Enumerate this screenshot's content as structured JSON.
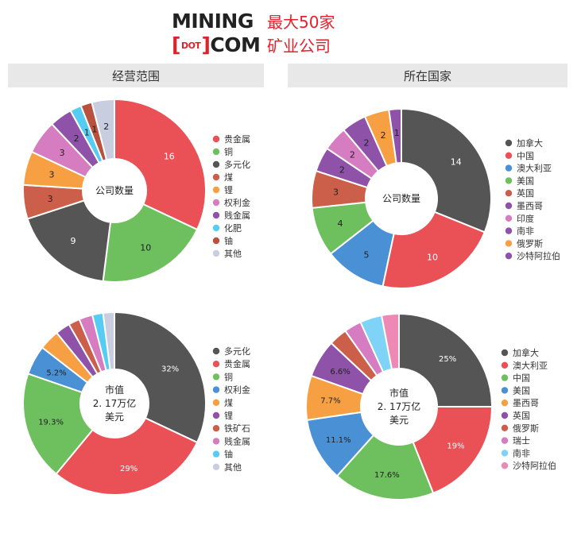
{
  "header": {
    "logo_line1": "MINING",
    "logo_bracket_open": "[",
    "logo_dot": "DOT",
    "logo_bracket_close": "]",
    "logo_line2_word": "COM",
    "tagline_line1": "最大50家",
    "tagline_line2": "矿业公司"
  },
  "sections": {
    "left_title": "经营范围",
    "right_title": "所在国家"
  },
  "chart_data": [
    {
      "id": "scope-count",
      "type": "pie",
      "title": "经营范围",
      "center_label": [
        "公司数量"
      ],
      "categories": [
        "贵金属",
        "铜",
        "多元化",
        "煤",
        "锂",
        "权利金",
        "贱金属",
        "化肥",
        "铀",
        "其他"
      ],
      "values": [
        16,
        10,
        9,
        3,
        3,
        3,
        2,
        1,
        1,
        2
      ],
      "labels": [
        "16",
        "10",
        "9",
        "3",
        "3",
        "3",
        "2",
        "1",
        "1",
        "2"
      ],
      "colors": [
        "#ea5157",
        "#6ebf5e",
        "#555555",
        "#cc5f4a",
        "#f6a043",
        "#d67cc0",
        "#8e52a8",
        "#56ccf2",
        "#b8513d",
        "#c8cde0"
      ]
    },
    {
      "id": "country-count",
      "type": "pie",
      "title": "所在国家",
      "center_label": [
        "公司数量"
      ],
      "categories": [
        "加拿大",
        "中国",
        "澳大利亚",
        "美国",
        "英国",
        "墨西哥",
        "印度",
        "南非",
        "俄罗斯",
        "沙特阿拉伯"
      ],
      "values": [
        14,
        10,
        5,
        4,
        3,
        2,
        2,
        2,
        2,
        1
      ],
      "labels": [
        "14",
        "10",
        "5",
        "4",
        "3",
        "2",
        "2",
        "2",
        "2",
        "1"
      ],
      "colors": [
        "#555555",
        "#ea5157",
        "#4a90d4",
        "#6ebf5e",
        "#cc5f4a",
        "#8e52a8",
        "#d67cc0",
        "#8e52a8",
        "#f6a043",
        "#8e52a8"
      ]
    },
    {
      "id": "scope-marketcap",
      "type": "pie",
      "title": "",
      "center_label": [
        "市值",
        "2. 17万亿",
        "美元"
      ],
      "categories": [
        "多元化",
        "贵金属",
        "铜",
        "权利金",
        "煤",
        "锂",
        "铁矿石",
        "贱金属",
        "铀",
        "其他"
      ],
      "values": [
        32,
        29,
        19.3,
        5.2,
        3.6,
        2.6,
        2.0,
        2.4,
        1.9,
        2.0
      ],
      "labels": [
        "32%",
        "29%",
        "19.3%",
        "5.2%",
        "",
        "",
        "",
        "",
        "",
        ""
      ],
      "colors": [
        "#555555",
        "#ea5157",
        "#6ebf5e",
        "#4a90d4",
        "#f6a043",
        "#8e52a8",
        "#cc5f4a",
        "#d67cc0",
        "#56ccf2",
        "#c8cde0"
      ]
    },
    {
      "id": "country-marketcap",
      "type": "pie",
      "title": "",
      "center_label": [
        "市值",
        "2. 17万亿",
        "美元"
      ],
      "categories": [
        "加拿大",
        "澳大利亚",
        "中国",
        "美国",
        "墨西哥",
        "英国",
        "俄罗斯",
        "瑞士",
        "南非",
        "沙特阿拉伯"
      ],
      "values": [
        25,
        19,
        17.6,
        11.1,
        7.7,
        6.6,
        3.2,
        3.0,
        3.8,
        3.0
      ],
      "labels": [
        "25%",
        "19%",
        "17.6%",
        "11.1%",
        "7.7%",
        "6.6%",
        "",
        "",
        "",
        ""
      ],
      "colors": [
        "#555555",
        "#ea5157",
        "#6ebf5e",
        "#4a90d4",
        "#f6a043",
        "#8e52a8",
        "#cc5f4a",
        "#d67cc0",
        "#7fd3f7",
        "#ee88b4"
      ]
    }
  ]
}
